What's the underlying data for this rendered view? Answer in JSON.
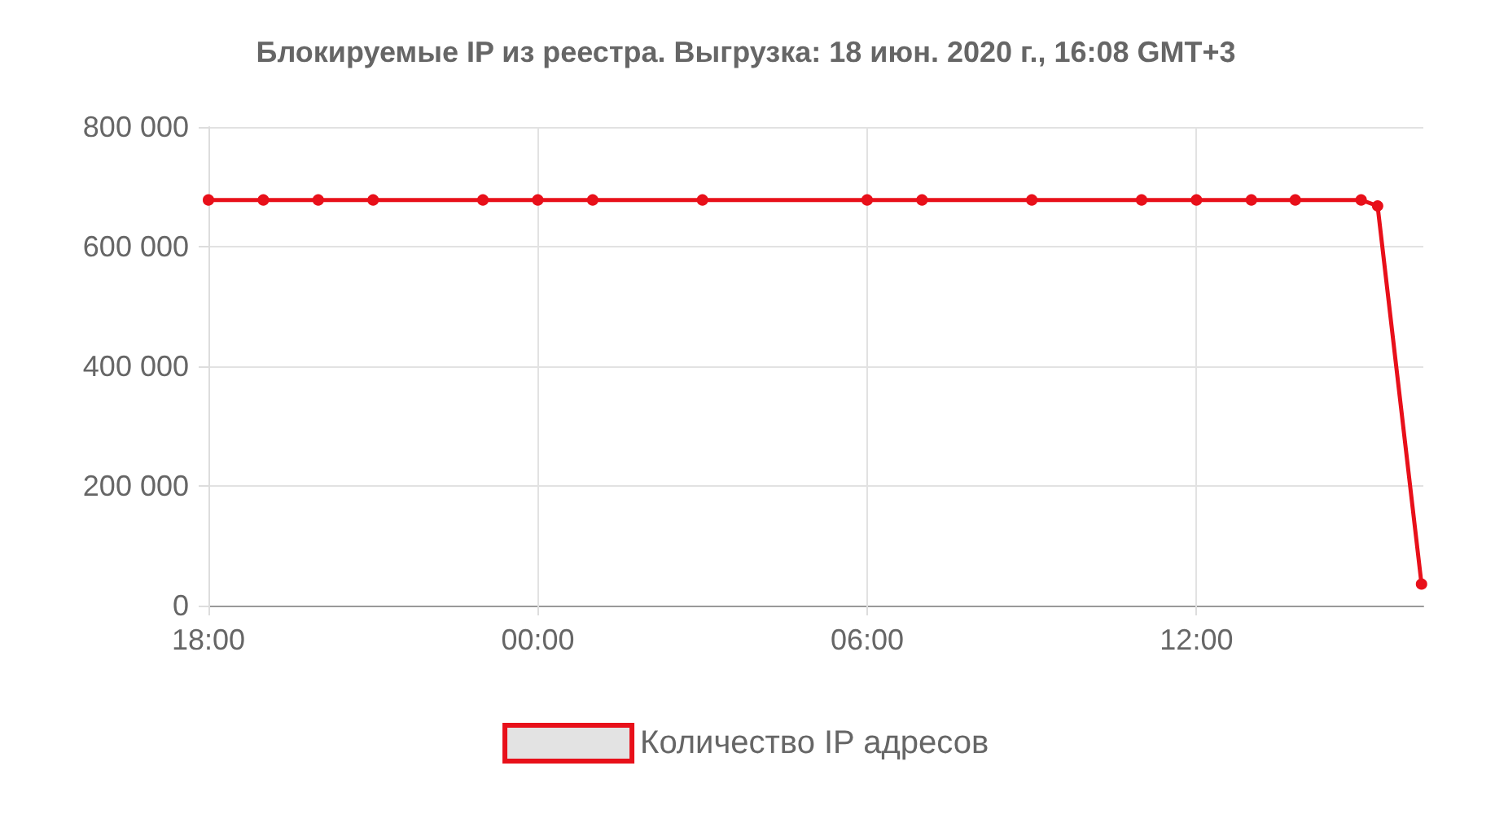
{
  "chart_data": {
    "type": "line",
    "title": "Блокируемые IP из реестра. Выгрузка: 18 июн. 2020 г., 16:08 GMT+3",
    "x": [
      "2020-06-17T18:00",
      "2020-06-17T19:00",
      "2020-06-17T20:00",
      "2020-06-17T21:00",
      "2020-06-17T23:00",
      "2020-06-18T00:00",
      "2020-06-18T01:00",
      "2020-06-18T03:00",
      "2020-06-18T06:00",
      "2020-06-18T07:00",
      "2020-06-18T09:00",
      "2020-06-18T11:00",
      "2020-06-18T12:00",
      "2020-06-18T13:00",
      "2020-06-18T13:48",
      "2020-06-18T15:00",
      "2020-06-18T15:18",
      "2020-06-18T16:06"
    ],
    "series": [
      {
        "name": "Количество IP адресов",
        "color": "#e8101a",
        "values": [
          678000,
          678000,
          678000,
          678000,
          678000,
          678000,
          678000,
          678000,
          678000,
          678000,
          678000,
          678000,
          678000,
          678000,
          678000,
          678000,
          668000,
          36000
        ]
      }
    ],
    "xlim": [
      "2020-06-17T18:00",
      "2020-06-18T16:08"
    ],
    "xticks": [
      {
        "value": "2020-06-17T18:00",
        "label": "18:00"
      },
      {
        "value": "2020-06-18T00:00",
        "label": "00:00"
      },
      {
        "value": "2020-06-18T06:00",
        "label": "06:00"
      },
      {
        "value": "2020-06-18T12:00",
        "label": "12:00"
      }
    ],
    "ylim": [
      0,
      800000
    ],
    "yticks": [
      {
        "value": 0,
        "label": "0"
      },
      {
        "value": 200000,
        "label": "200 000"
      },
      {
        "value": 400000,
        "label": "400 000"
      },
      {
        "value": 600000,
        "label": "600 000"
      },
      {
        "value": 800000,
        "label": "800 000"
      }
    ],
    "grid": true,
    "legend": "bottom",
    "marker": "circle",
    "line_style": "solid"
  }
}
